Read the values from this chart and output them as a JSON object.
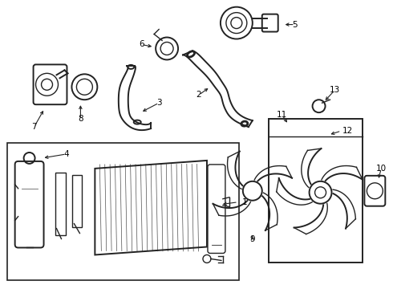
{
  "background_color": "#ffffff",
  "line_color": "#222222",
  "text_color": "#000000",
  "figsize": [
    4.9,
    3.6
  ],
  "dpi": 100,
  "label_fontsize": 7.5
}
